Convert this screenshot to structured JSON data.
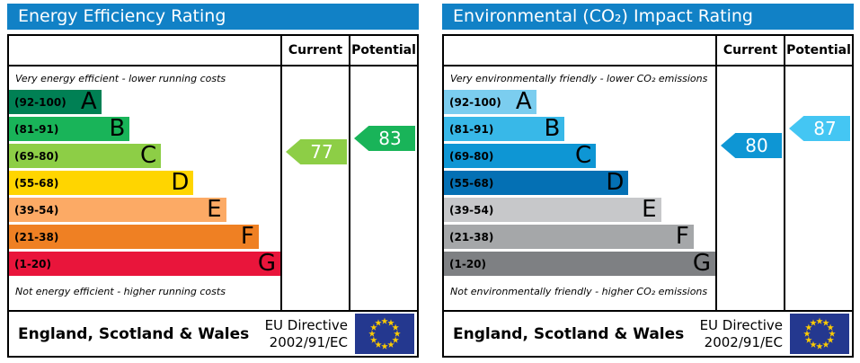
{
  "colors": {
    "header_bg": "#1181c6",
    "border": "#000000",
    "flag_bg": "#24388f",
    "flag_star": "#ffcc00",
    "arrow_text": "#ffffff"
  },
  "chart_data": [
    {
      "type": "bar",
      "subtype": "epc-rating",
      "orientation": "horizontal",
      "title": "Energy Efficiency Rating",
      "columns": [
        "Current",
        "Potential"
      ],
      "top_note": "Very energy efficient - lower running costs",
      "bottom_note": "Not energy efficient - higher running costs",
      "scale": [
        1,
        100
      ],
      "bands": [
        {
          "label": "A",
          "range_label": "(92-100)",
          "range": [
            92,
            100
          ],
          "color": "#008054",
          "bar_length_pct": 34
        },
        {
          "label": "B",
          "range_label": "(81-91)",
          "range": [
            81,
            91
          ],
          "color": "#19b459",
          "bar_length_pct": 44.5
        },
        {
          "label": "C",
          "range_label": "(69-80)",
          "range": [
            69,
            80
          ],
          "color": "#8dce46",
          "bar_length_pct": 56
        },
        {
          "label": "D",
          "range_label": "(55-68)",
          "range": [
            55,
            68
          ],
          "color": "#ffd500",
          "bar_length_pct": 68
        },
        {
          "label": "E",
          "range_label": "(39-54)",
          "range": [
            39,
            54
          ],
          "color": "#fcaa65",
          "bar_length_pct": 80
        },
        {
          "label": "F",
          "range_label": "(21-38)",
          "range": [
            21,
            38
          ],
          "color": "#ef8023",
          "bar_length_pct": 92
        },
        {
          "label": "G",
          "range_label": "(1-20)",
          "range": [
            1,
            20
          ],
          "color": "#e9153b",
          "bar_length_pct": 100
        }
      ],
      "current": 77,
      "current_color": "#8dce46",
      "potential": 83,
      "potential_color": "#19b459",
      "footer": {
        "region": "England, Scotland & Wales",
        "directive_line1": "EU Directive",
        "directive_line2": "2002/91/EC"
      }
    },
    {
      "type": "bar",
      "subtype": "epc-rating",
      "orientation": "horizontal",
      "title": "Environmental (CO₂) Impact Rating",
      "columns": [
        "Current",
        "Potential"
      ],
      "top_note": "Very environmentally friendly - lower CO₂ emissions",
      "bottom_note": "Not environmentally friendly - higher CO₂ emissions",
      "scale": [
        1,
        100
      ],
      "bands": [
        {
          "label": "A",
          "range_label": "(92-100)",
          "range": [
            92,
            100
          ],
          "color": "#7bcdef",
          "bar_length_pct": 34
        },
        {
          "label": "B",
          "range_label": "(81-91)",
          "range": [
            81,
            91
          ],
          "color": "#38b8e8",
          "bar_length_pct": 44.5
        },
        {
          "label": "C",
          "range_label": "(69-80)",
          "range": [
            69,
            80
          ],
          "color": "#0e96d4",
          "bar_length_pct": 56
        },
        {
          "label": "D",
          "range_label": "(55-68)",
          "range": [
            55,
            68
          ],
          "color": "#0470b4",
          "bar_length_pct": 68
        },
        {
          "label": "E",
          "range_label": "(39-54)",
          "range": [
            39,
            54
          ],
          "color": "#c7c8ca",
          "bar_length_pct": 80
        },
        {
          "label": "F",
          "range_label": "(21-38)",
          "range": [
            21,
            38
          ],
          "color": "#a5a7a9",
          "bar_length_pct": 92
        },
        {
          "label": "G",
          "range_label": "(1-20)",
          "range": [
            1,
            20
          ],
          "color": "#7e8083",
          "bar_length_pct": 100
        }
      ],
      "current": 80,
      "current_color": "#0e96d4",
      "potential": 87,
      "potential_color": "#44c6f3",
      "footer": {
        "region": "England, Scotland & Wales",
        "directive_line1": "EU Directive",
        "directive_line2": "2002/91/EC"
      }
    }
  ]
}
